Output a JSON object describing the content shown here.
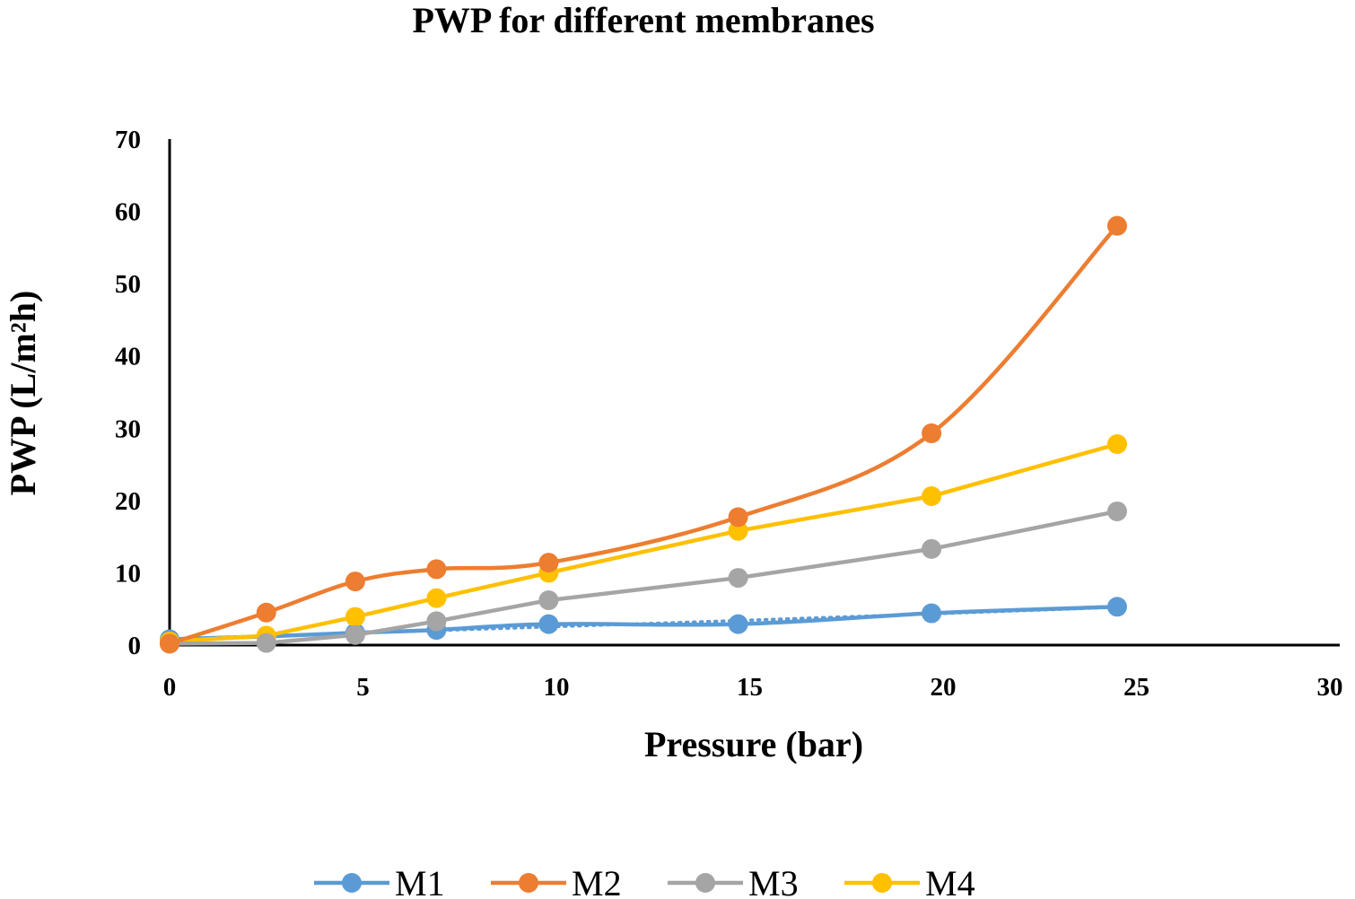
{
  "chart_data": {
    "type": "line",
    "title": "PWP for different membranes",
    "xlabel": "Pressure (bar)",
    "ylabel": "PWP (L/m²h)",
    "xlim": [
      0,
      30
    ],
    "ylim": [
      0,
      70
    ],
    "xticks": [
      0,
      5,
      10,
      15,
      20,
      25,
      30
    ],
    "yticks": [
      0,
      10,
      20,
      30,
      40,
      50,
      60,
      70
    ],
    "grid": false,
    "legend_position": "bottom",
    "series": [
      {
        "name": "M1",
        "color": "#5B9BD5",
        "smooth": true,
        "trendline": true,
        "x": [
          0,
          2.5,
          4.8,
          6.9,
          9.8,
          14.7,
          19.7,
          24.5
        ],
        "y": [
          0.8,
          1.2,
          1.7,
          2.1,
          2.9,
          2.9,
          4.4,
          5.3
        ]
      },
      {
        "name": "M2",
        "color": "#ED7D31",
        "smooth": true,
        "trendline": false,
        "x": [
          0,
          2.5,
          4.8,
          6.9,
          9.8,
          14.7,
          19.7,
          24.5
        ],
        "y": [
          0.2,
          4.5,
          8.8,
          10.5,
          11.4,
          17.7,
          29.3,
          58.0
        ]
      },
      {
        "name": "M3",
        "color": "#A5A5A5",
        "smooth": false,
        "trendline": false,
        "x": [
          0,
          2.5,
          4.8,
          6.9,
          9.8,
          14.7,
          19.7,
          24.5
        ],
        "y": [
          0.2,
          0.3,
          1.4,
          3.3,
          6.2,
          9.3,
          13.3,
          18.5
        ]
      },
      {
        "name": "M4",
        "color": "#FFC000",
        "smooth": false,
        "trendline": false,
        "x": [
          0,
          2.5,
          4.8,
          6.9,
          9.8,
          14.7,
          19.7,
          24.5
        ],
        "y": [
          0.5,
          1.3,
          3.9,
          6.5,
          10.0,
          15.8,
          20.6,
          27.8
        ]
      }
    ]
  }
}
